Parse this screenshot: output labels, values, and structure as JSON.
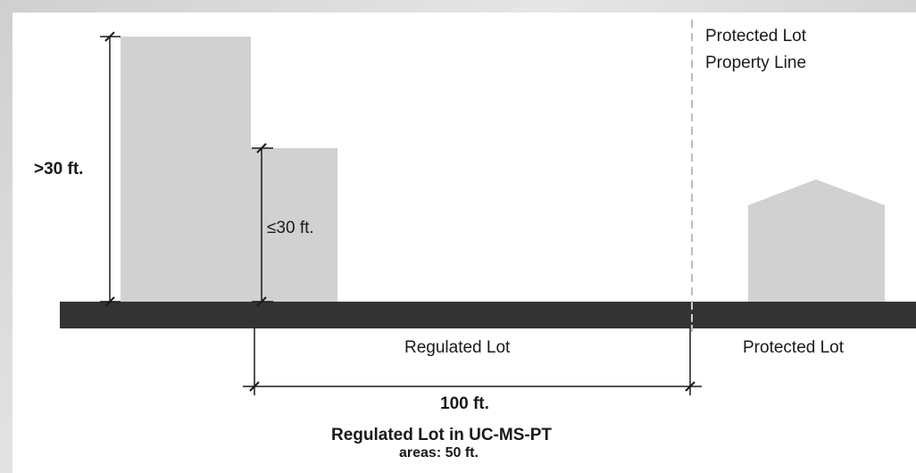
{
  "labels": {
    "height_over": ">30 ft.",
    "height_under": "≤30 ft.",
    "protected_line_1": "Protected Lot",
    "protected_line_2": "Property Line",
    "regulated_lot": "Regulated Lot",
    "protected_lot": "Protected Lot",
    "distance": "100 ft.",
    "note_line_1": "Regulated Lot in UC-MS-PT",
    "note_line_2": "areas: 50 ft."
  },
  "colors": {
    "building_fill": "#d1d1d1",
    "ground": "#333333",
    "dimension_line": "#1a1a1a",
    "property_line": "#bdbdbd",
    "background": "#ffffff"
  }
}
